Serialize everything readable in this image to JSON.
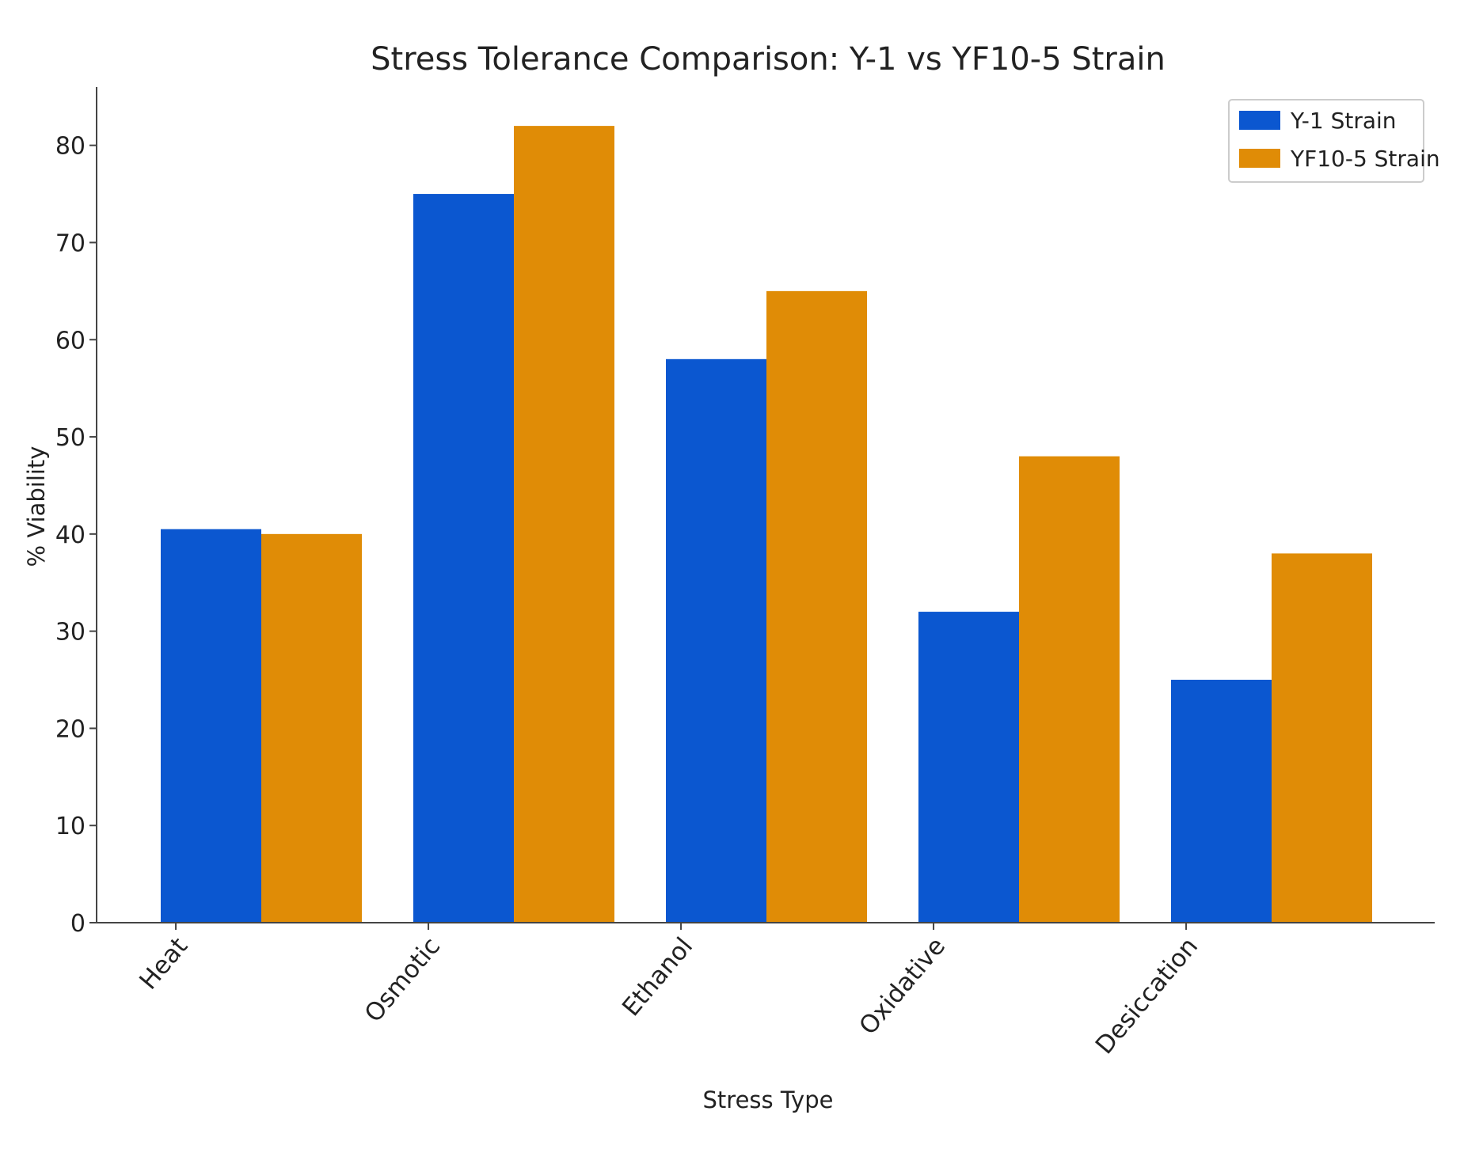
{
  "chart_data": {
    "type": "bar",
    "title": "Stress Tolerance Comparison: Y-1 vs YF10-5 Strain",
    "xlabel": "Stress Type",
    "ylabel": "% Viability",
    "categories": [
      "Heat",
      "Osmotic",
      "Ethanol",
      "Oxidative",
      "Desiccation"
    ],
    "series": [
      {
        "name": "Y-1 Strain",
        "color": "#0b57d0",
        "values": [
          40.5,
          75,
          58,
          32,
          25
        ]
      },
      {
        "name": "YF10-5 Strain",
        "color": "#e08c06",
        "values": [
          40,
          82,
          65,
          48,
          38
        ]
      }
    ],
    "ylim": [
      0,
      86
    ],
    "yticks": [
      0,
      10,
      20,
      30,
      40,
      50,
      60,
      70,
      80
    ],
    "grid": false,
    "legend_position": "top-right",
    "xtick_rotation": -50
  }
}
